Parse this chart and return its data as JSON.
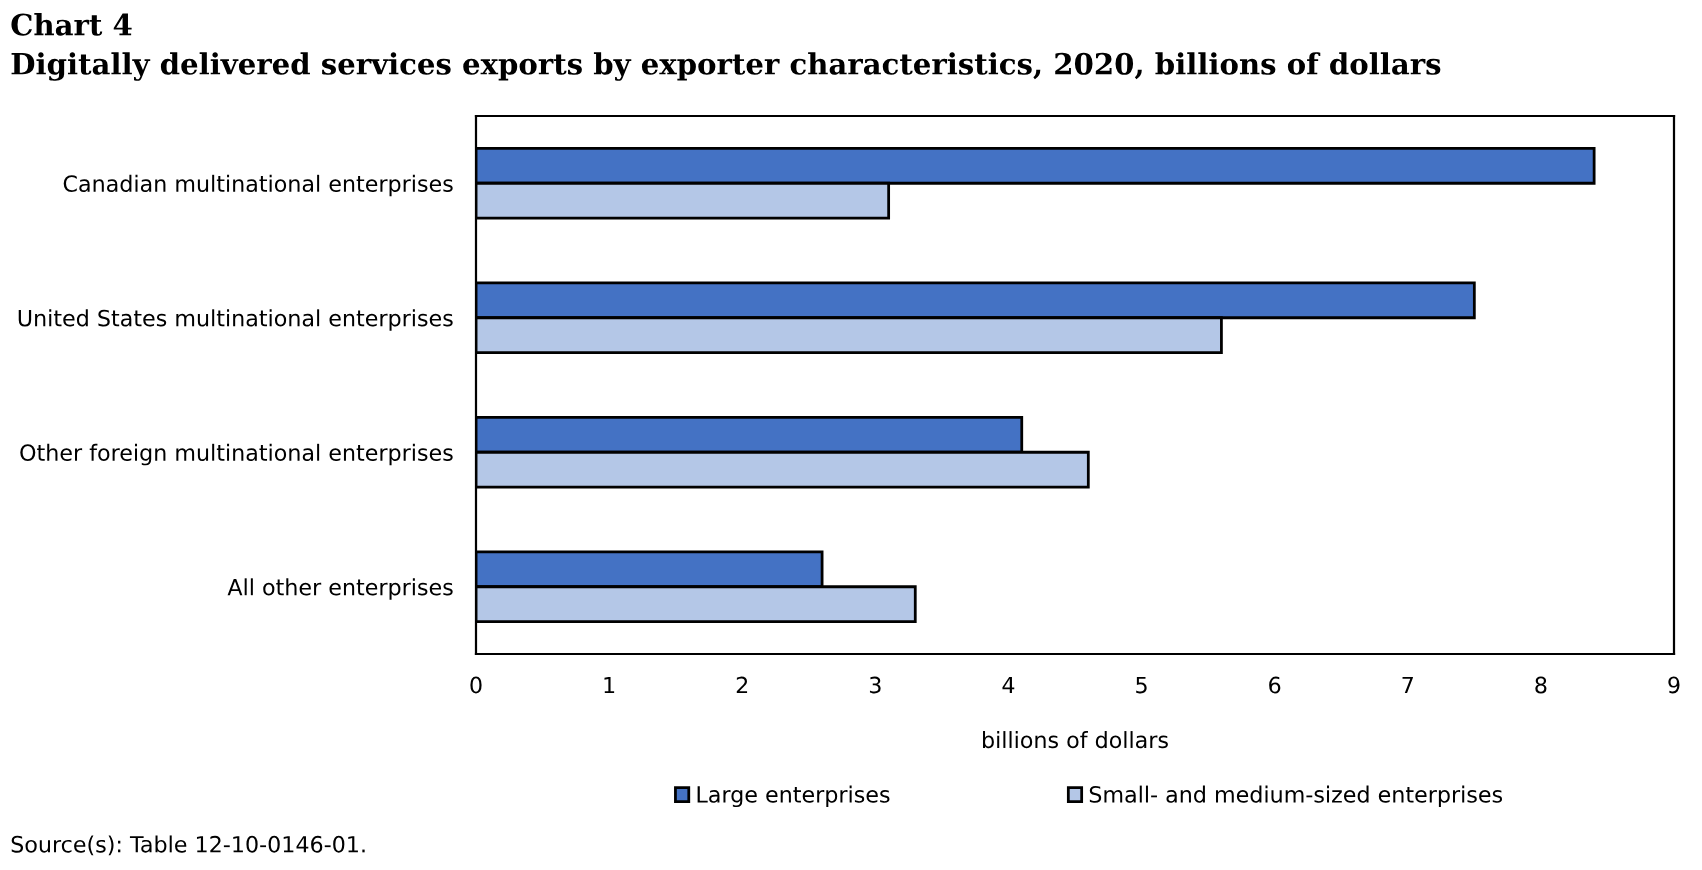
{
  "chart_data": {
    "type": "bar",
    "orientation": "horizontal",
    "title": "Chart 4",
    "subtitle": "Digitally delivered services exports by exporter characteristics, 2020, billions of dollars",
    "xlabel": "billions of dollars",
    "categories": [
      "Canadian multinational enterprises",
      "United States multinational enterprises",
      "Other foreign multinational enterprises",
      "All other enterprises"
    ],
    "series": [
      {
        "name": "Large enterprises",
        "color": "#4472c4",
        "values": [
          8.4,
          7.5,
          4.1,
          2.6
        ]
      },
      {
        "name": "Small- and medium-sized enterprises",
        "color": "#b4c7e7",
        "values": [
          3.1,
          5.6,
          4.6,
          3.3
        ]
      }
    ],
    "xlim": [
      0,
      9
    ],
    "xticks": [
      0,
      1,
      2,
      3,
      4,
      5,
      6,
      7,
      8,
      9
    ],
    "grid": false,
    "legend": "bottom",
    "annotations": [
      "Source(s): Table 12-10-0146-01."
    ]
  }
}
